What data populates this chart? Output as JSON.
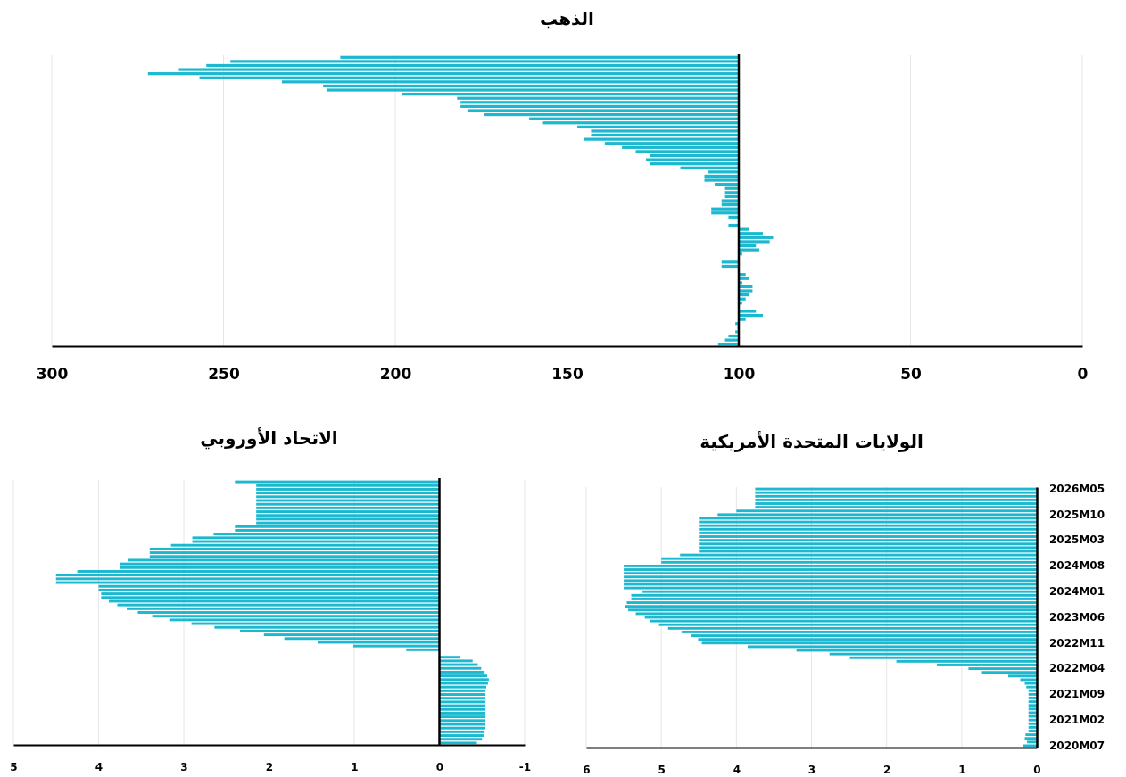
{
  "chart_data": [
    {
      "type": "bar",
      "orientation": "horizontal",
      "title": "الذهب",
      "color": "#1cb8d0",
      "grid": "x",
      "tick_labels": "x",
      "categories": [
        null,
        null,
        null,
        null,
        null,
        null,
        null,
        null,
        null,
        null,
        null,
        null,
        null,
        null,
        null,
        null,
        null,
        null,
        null,
        null,
        null,
        null,
        null,
        null,
        null,
        null,
        null,
        null,
        null,
        null,
        null,
        null,
        null,
        null,
        null,
        null,
        null,
        null,
        null,
        null,
        null,
        null,
        null,
        null,
        null,
        null,
        null,
        null,
        null,
        null,
        null,
        null,
        null,
        null,
        null,
        null,
        null,
        null,
        null,
        null,
        null,
        null,
        null,
        null,
        null,
        null,
        null,
        null,
        null,
        null,
        null
      ],
      "base": [
        100,
        100,
        100,
        100,
        100,
        100,
        100,
        100,
        100,
        100,
        100,
        100,
        100,
        100,
        100,
        100,
        100,
        100,
        100,
        100,
        100,
        100,
        100,
        100,
        100,
        100,
        100,
        100,
        100,
        100,
        100,
        100,
        100,
        100,
        100,
        100,
        100,
        100,
        100,
        100,
        null,
        100,
        100,
        100,
        100,
        100,
        100,
        100,
        100,
        null,
        100,
        100,
        null,
        100,
        100,
        100,
        100,
        100,
        100,
        100,
        100,
        null,
        100,
        100,
        100,
        100,
        100,
        100,
        100,
        100,
        100
      ],
      "values": [
        116,
        148,
        155,
        163,
        172,
        157,
        133,
        121,
        120,
        98,
        82,
        81,
        81,
        79,
        74,
        61,
        57,
        47,
        43,
        43,
        45,
        39,
        34,
        30,
        26,
        27,
        26,
        17,
        9,
        10,
        10,
        7,
        4,
        4,
        4,
        5,
        5,
        8,
        8,
        3,
        null,
        3,
        -3,
        -7,
        -10,
        -9,
        -5,
        -6,
        -1,
        null,
        5,
        5,
        null,
        -2,
        -3,
        -1,
        -4,
        -4,
        -3,
        -2,
        -1,
        null,
        -5,
        -7,
        -2,
        1,
        0.4,
        1,
        3,
        4,
        6
      ],
      "xlim": [
        300,
        0
      ],
      "xticks": [
        300,
        250,
        200,
        150,
        100,
        50,
        0
      ],
      "ref_lines": [
        {
          "axis": "x",
          "value": 100,
          "color": "#000000"
        }
      ]
    },
    {
      "type": "bar",
      "orientation": "horizontal",
      "title": "الاتحاد الأوروبي",
      "color": "#1cb8d0",
      "grid": "x",
      "tick_labels": "x",
      "categories": [
        null,
        null,
        null,
        null,
        null,
        null,
        null,
        null,
        null,
        null,
        null,
        null,
        null,
        null,
        null,
        null,
        null,
        null,
        null,
        null,
        null,
        null,
        null,
        null,
        null,
        null,
        null,
        null,
        null,
        null,
        null,
        null,
        null,
        null,
        null,
        null,
        null,
        null,
        null,
        null,
        null,
        null,
        null,
        null,
        null,
        null,
        null,
        null,
        null,
        null,
        null,
        null,
        null,
        null,
        null,
        null,
        null,
        null,
        null,
        null,
        null,
        null,
        null,
        null,
        null,
        null,
        null,
        null,
        null,
        null,
        null
      ],
      "values": [
        2.4,
        2.15,
        2.15,
        2.15,
        2.15,
        2.15,
        2.15,
        2.15,
        2.15,
        2.15,
        2.15,
        2.15,
        2.4,
        2.4,
        2.65,
        2.9,
        2.9,
        3.15,
        3.4,
        3.4,
        3.4,
        3.65,
        3.75,
        3.75,
        4.25,
        4.5,
        4.5,
        4.5,
        4.0,
        4.0,
        3.97,
        3.97,
        3.88,
        3.78,
        3.67,
        3.54,
        3.37,
        3.17,
        2.91,
        2.64,
        2.34,
        2.06,
        1.82,
        1.43,
        1.01,
        0.39,
        null,
        -0.24,
        -0.39,
        -0.45,
        -0.49,
        -0.53,
        -0.56,
        -0.58,
        -0.57,
        -0.55,
        -0.54,
        -0.54,
        -0.54,
        -0.54,
        -0.54,
        -0.54,
        -0.54,
        -0.54,
        -0.54,
        -0.54,
        -0.54,
        -0.53,
        -0.52,
        -0.5,
        -0.44
      ],
      "xlim": [
        5,
        -1
      ],
      "xticks": [
        5,
        4,
        3,
        2,
        1,
        0,
        -1
      ],
      "ref_lines": [
        {
          "axis": "x",
          "value": 0,
          "color": "#000000"
        }
      ]
    },
    {
      "type": "bar",
      "orientation": "horizontal",
      "title": "الولايات المتحدة الأمريكية",
      "color": "#1cb8d0",
      "grid": "x",
      "categories": [
        "2026M05",
        null,
        null,
        null,
        null,
        null,
        null,
        "2025M10",
        null,
        null,
        null,
        null,
        null,
        null,
        "2025M03",
        null,
        null,
        null,
        null,
        null,
        null,
        "2024M08",
        null,
        null,
        null,
        null,
        null,
        null,
        "2024M01",
        null,
        null,
        null,
        null,
        null,
        null,
        "2023M06",
        null,
        null,
        null,
        null,
        null,
        null,
        "2022M11",
        null,
        null,
        null,
        null,
        null,
        null,
        "2022M04",
        null,
        null,
        null,
        null,
        null,
        null,
        "2021M09",
        null,
        null,
        null,
        null,
        null,
        null,
        "2021M02",
        null,
        null,
        null,
        null,
        null,
        null,
        "2020M07"
      ],
      "values": [
        3.75,
        3.75,
        3.75,
        3.75,
        3.75,
        3.75,
        4.0,
        4.25,
        4.5,
        4.5,
        4.5,
        4.5,
        4.5,
        4.5,
        4.5,
        4.5,
        4.5,
        4.5,
        4.75,
        5.0,
        5.0,
        5.5,
        5.5,
        5.5,
        5.5,
        5.5,
        5.5,
        5.5,
        5.25,
        5.4,
        5.4,
        5.46,
        5.48,
        5.44,
        5.34,
        5.22,
        5.15,
        5.03,
        4.91,
        4.73,
        4.6,
        4.51,
        4.46,
        3.85,
        3.2,
        2.76,
        2.49,
        1.87,
        1.33,
        0.91,
        0.73,
        0.38,
        0.22,
        0.16,
        0.14,
        0.11,
        0.11,
        0.11,
        0.11,
        0.11,
        0.11,
        0.11,
        0.11,
        0.11,
        0.11,
        0.11,
        0.11,
        0.15,
        0.16,
        0.13,
        0.18
      ],
      "xlim": [
        6,
        0
      ],
      "xticks": [
        6,
        5,
        4,
        3,
        2,
        1,
        0
      ]
    }
  ]
}
